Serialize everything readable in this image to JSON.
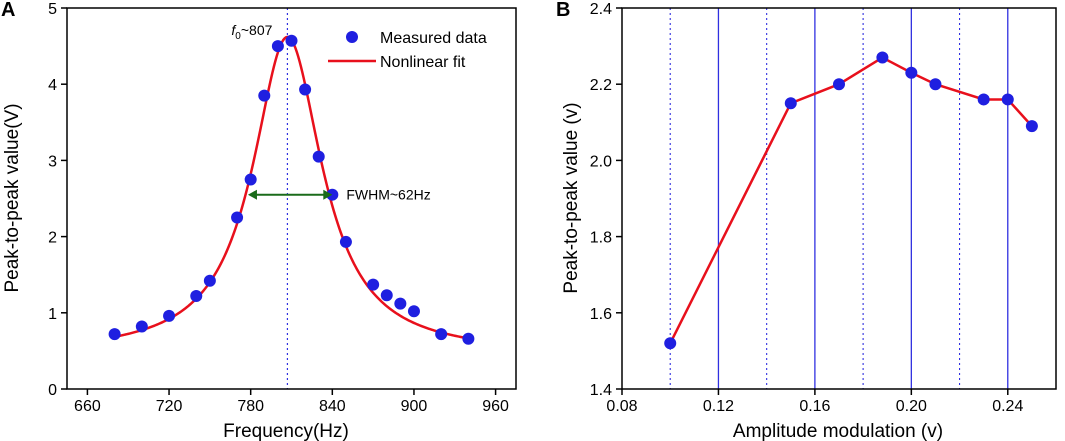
{
  "chart_data": [
    {
      "panel": "A",
      "type": "scatter",
      "xlabel": "Frequency(Hz)",
      "ylabel": "Peak-to-peak value(V)",
      "xlim": [
        645,
        975
      ],
      "ylim": [
        0,
        5
      ],
      "xticks": [
        660,
        720,
        780,
        840,
        900,
        960
      ],
      "yticks": [
        0,
        1,
        2,
        3,
        4,
        5
      ],
      "series": [
        {
          "name": "Measured data",
          "kind": "points",
          "color": "#1f1fe0",
          "x": [
            680,
            700,
            720,
            740,
            750,
            770,
            780,
            790,
            800,
            810,
            820,
            830,
            840,
            850,
            870,
            880,
            890,
            900,
            920,
            940
          ],
          "y": [
            0.72,
            0.82,
            0.96,
            1.22,
            1.42,
            2.25,
            2.75,
            3.85,
            4.5,
            4.57,
            3.93,
            3.05,
            2.55,
            1.93,
            1.37,
            1.23,
            1.12,
            1.02,
            0.72,
            0.66
          ]
        },
        {
          "name": "Nonlinear fit",
          "kind": "line",
          "color": "#e8101c",
          "model": "lorentzian",
          "baseline": 0.45,
          "amplitude": 4.17,
          "center": 807,
          "fwhm": 62,
          "x_range": [
            680,
            940
          ]
        }
      ],
      "annotations": {
        "f0_label": "~807",
        "f0_symbol": "f",
        "f0_subscript": "0",
        "f0_value": 807,
        "fwhm_label": "FWHM~62Hz",
        "fwhm_arrow_x": [
          778,
          840
        ],
        "fwhm_arrow_y": 2.55,
        "arrow_color": "#1a6b1a"
      }
    },
    {
      "panel": "B",
      "type": "line",
      "xlabel": "Amplitude modulation (v)",
      "ylabel": "Peak-to-peak value (v)",
      "xlim": [
        0.08,
        0.26
      ],
      "ylim": [
        1.4,
        2.4
      ],
      "xticks": [
        0.08,
        0.12,
        0.16,
        0.2,
        0.24
      ],
      "yticks": [
        1.4,
        1.6,
        1.8,
        2.0,
        2.2,
        2.4
      ],
      "xtick_labels": [
        "0.08",
        "0.12",
        "0.16",
        "0.20",
        "0.24"
      ],
      "ytick_labels": [
        "1.4",
        "1.6",
        "1.8",
        "2.0",
        "2.2",
        "2.4"
      ],
      "grid_solid_x": [
        0.12,
        0.16,
        0.2,
        0.24
      ],
      "grid_dotted_x": [
        0.1,
        0.14,
        0.18,
        0.22
      ],
      "grid_color": "#3030e0",
      "series": [
        {
          "name": "Peak-to-peak value",
          "line_color": "#e8101c",
          "marker_color": "#1f1fe0",
          "x": [
            0.1,
            0.15,
            0.17,
            0.188,
            0.2,
            0.21,
            0.23,
            0.24,
            0.25
          ],
          "y": [
            1.52,
            2.15,
            2.2,
            2.27,
            2.23,
            2.2,
            2.16,
            2.16,
            2.09
          ]
        }
      ]
    }
  ],
  "legend": {
    "measured_label": "Measured data",
    "fit_label": "Nonlinear fit"
  }
}
